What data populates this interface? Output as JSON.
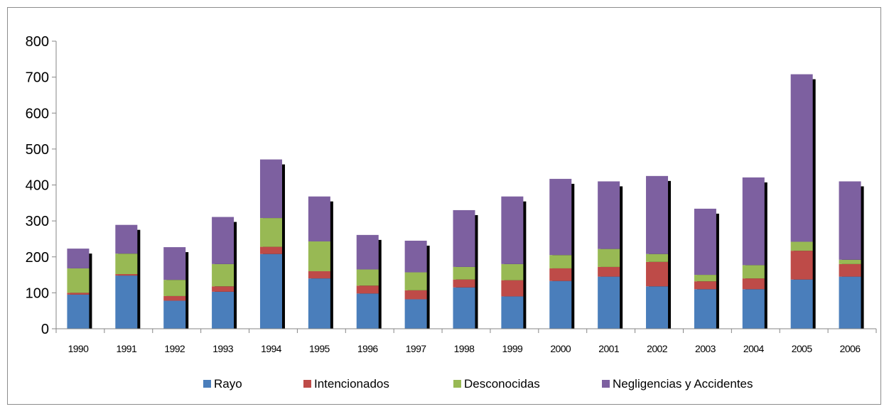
{
  "chart_data": {
    "type": "bar",
    "stacked": true,
    "categories": [
      "1990",
      "1991",
      "1992",
      "1993",
      "1994",
      "1995",
      "1996",
      "1997",
      "1998",
      "1999",
      "2000",
      "2001",
      "2002",
      "2003",
      "2004",
      "2005",
      "2006"
    ],
    "series": [
      {
        "name": "Rayo",
        "color": "#4a7ebb",
        "values": [
          95,
          148,
          78,
          103,
          208,
          140,
          98,
          82,
          115,
          90,
          133,
          145,
          118,
          110,
          110,
          137,
          145
        ]
      },
      {
        "name": "Intencionados",
        "color": "#be4b48",
        "values": [
          5,
          4,
          13,
          15,
          20,
          20,
          22,
          25,
          22,
          45,
          35,
          27,
          68,
          22,
          30,
          80,
          35
        ]
      },
      {
        "name": "Desconocidas",
        "color": "#98b954",
        "values": [
          68,
          57,
          45,
          62,
          80,
          83,
          45,
          50,
          35,
          45,
          37,
          50,
          22,
          18,
          37,
          25,
          12
        ]
      },
      {
        "name": "Negligencias y Accidentes",
        "color": "#7d60a0",
        "values": [
          55,
          80,
          91,
          131,
          163,
          125,
          96,
          88,
          158,
          188,
          212,
          188,
          217,
          184,
          244,
          466,
          218
        ]
      }
    ],
    "ylim": [
      0,
      800
    ],
    "yticks": [
      "0",
      "100",
      "200",
      "300",
      "400",
      "500",
      "600",
      "700",
      "800"
    ],
    "title": "",
    "xlabel": "",
    "ylabel": "",
    "grid": false,
    "legend_position": "bottom"
  }
}
